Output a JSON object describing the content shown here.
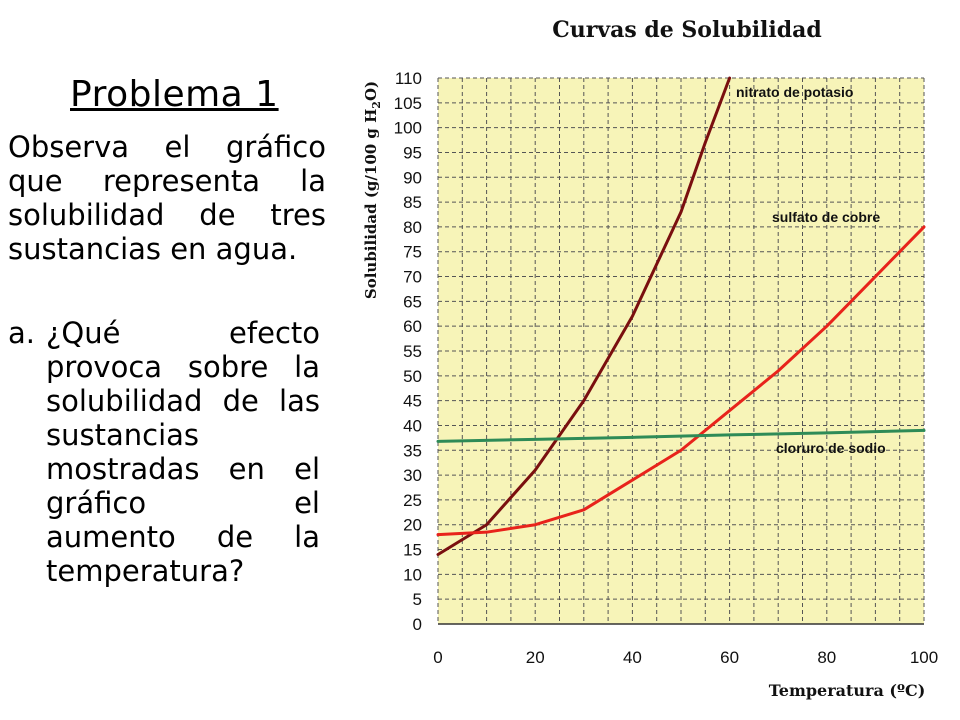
{
  "slide": {
    "title": "Problema 1",
    "intro": "Observa el gráfico que representa la solubilidad de tres sustancias en agua.",
    "question_marker": "a.",
    "question_text": "¿Qué efecto provoca sobre la solubilidad de las sustancias mostradas en el gráfico el aumento de la temperatura?"
  },
  "chart_data": {
    "type": "line",
    "title": "Curvas de Solubilidad",
    "xlabel": "Temperatura (ºC)",
    "ylabel_parts": [
      "Solubilidad (g/100 g H",
      "2",
      "O)"
    ],
    "xlim": [
      0,
      100
    ],
    "ylim": [
      0,
      110
    ],
    "x_ticks": [
      0,
      20,
      40,
      60,
      80,
      100
    ],
    "y_ticks": [
      0,
      5,
      10,
      15,
      20,
      25,
      30,
      35,
      40,
      45,
      50,
      55,
      60,
      65,
      70,
      75,
      80,
      85,
      90,
      95,
      100,
      105,
      110
    ],
    "grid": true,
    "series": [
      {
        "name": "nitrato de potasio",
        "color": "#7a0f0f",
        "x": [
          0,
          10,
          20,
          30,
          40,
          50,
          55,
          60
        ],
        "y": [
          14,
          20,
          31,
          45,
          62,
          83,
          97,
          110
        ]
      },
      {
        "name": "sulfato de cobre",
        "color": "#e8231b",
        "x": [
          0,
          10,
          20,
          30,
          40,
          50,
          60,
          70,
          80,
          90,
          100
        ],
        "y": [
          18,
          18.5,
          20,
          23,
          29,
          35,
          43,
          51,
          60,
          70,
          80
        ]
      },
      {
        "name": "cloruro de sodio",
        "color": "#2e8b57",
        "x": [
          0,
          20,
          40,
          60,
          80,
          100
        ],
        "y": [
          36.8,
          37.2,
          37.6,
          38.1,
          38.5,
          39
        ]
      }
    ]
  }
}
